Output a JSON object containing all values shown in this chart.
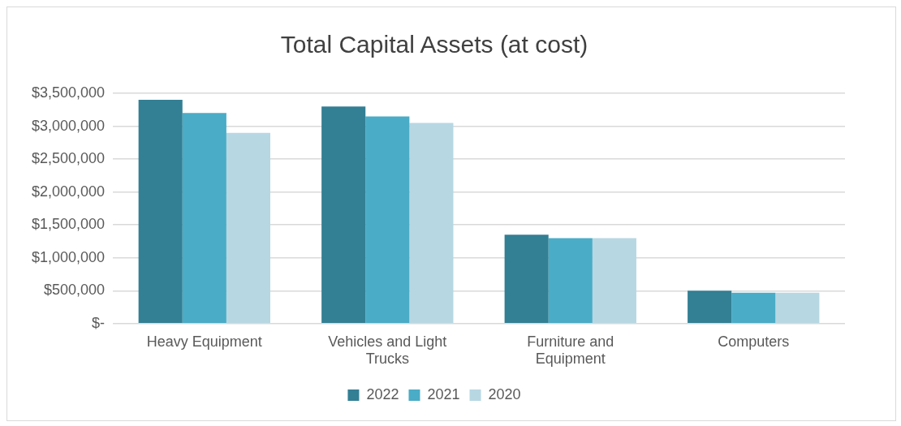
{
  "chart_data": {
    "type": "bar",
    "title": "Total Capital Assets (at cost)",
    "categories": [
      "Heavy Equipment",
      "Vehicles and Light Trucks",
      "Furniture and Equipment",
      "Computers"
    ],
    "series": [
      {
        "name": "2022",
        "color": "#337f94",
        "values": [
          3400000,
          3300000,
          1350000,
          500000
        ]
      },
      {
        "name": "2021",
        "color": "#4aacc6",
        "values": [
          3200000,
          3150000,
          1300000,
          470000
        ]
      },
      {
        "name": "2020",
        "color": "#b7d7e3",
        "values": [
          2900000,
          3050000,
          1300000,
          470000
        ]
      }
    ],
    "ylim": [
      0,
      3500000
    ],
    "yticks": [
      {
        "value": 0,
        "label": "$-"
      },
      {
        "value": 500000,
        "label": "$500,000"
      },
      {
        "value": 1000000,
        "label": "$1,000,000"
      },
      {
        "value": 1500000,
        "label": "$1,500,000"
      },
      {
        "value": 2000000,
        "label": "$2,000,000"
      },
      {
        "value": 2500000,
        "label": "$2,500,000"
      },
      {
        "value": 3000000,
        "label": "$3,000,000"
      },
      {
        "value": 3500000,
        "label": "$3,500,000"
      }
    ],
    "grid": "y",
    "legend": "bottom"
  }
}
